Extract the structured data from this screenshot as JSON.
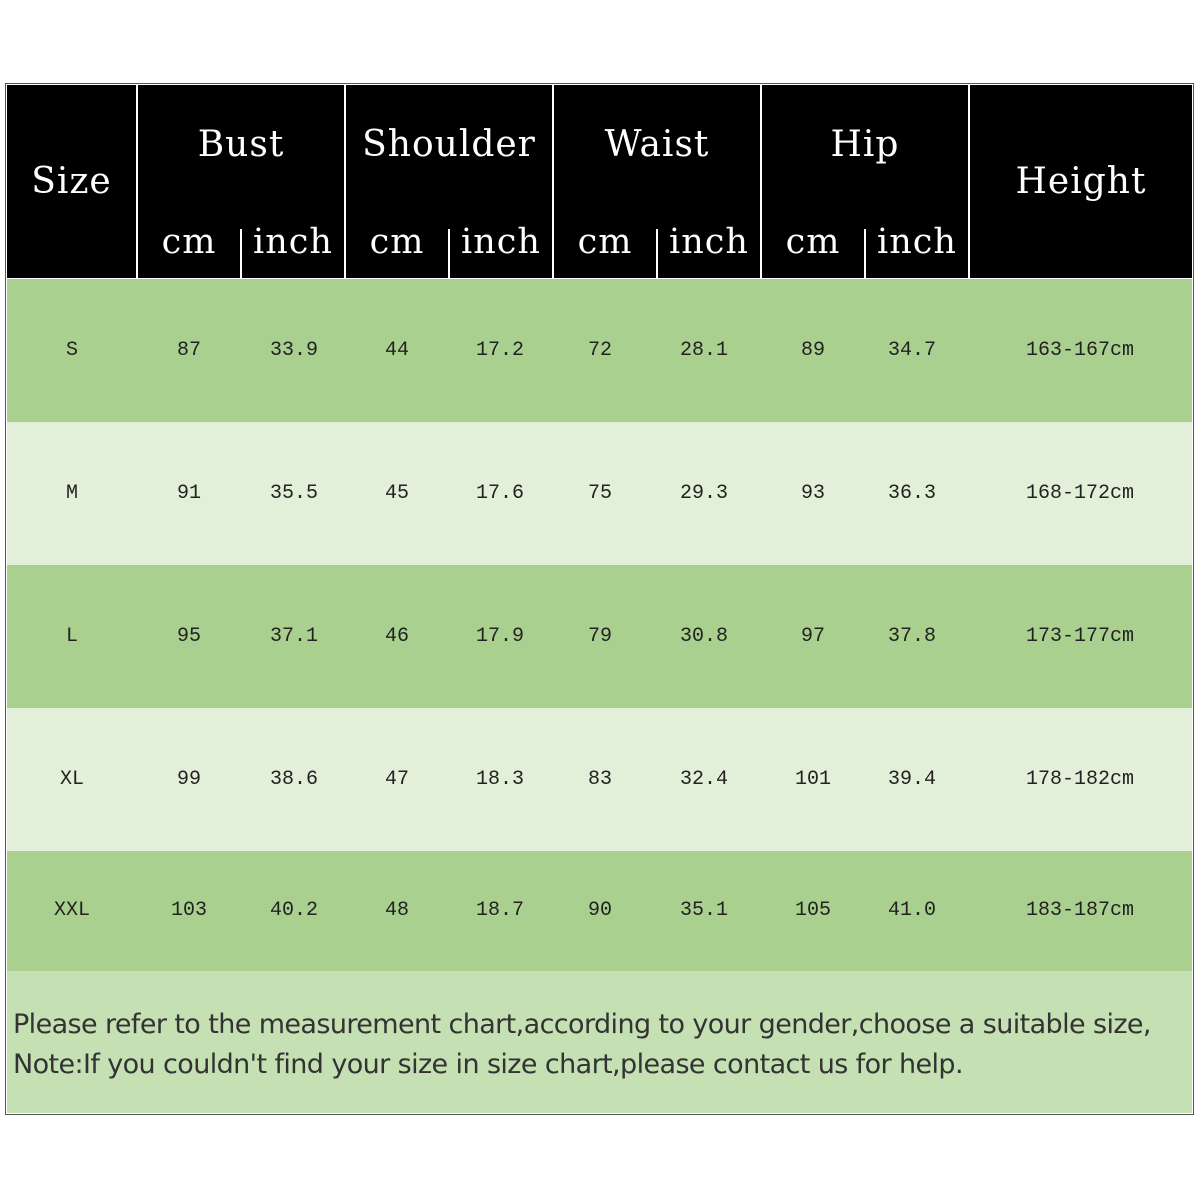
{
  "header": {
    "size": "Size",
    "groups": [
      "Bust",
      "Shoulder",
      "Waist",
      "Hip"
    ],
    "height": "Height",
    "units": [
      "cm",
      "inch",
      "cm",
      "inch",
      "cm",
      "inch",
      "cm",
      "inch"
    ]
  },
  "rows": [
    {
      "size": "S",
      "values": [
        "87",
        "33.9",
        "44",
        "17.2",
        "72",
        "28.1",
        "89",
        "34.7"
      ],
      "height": "163-167cm"
    },
    {
      "size": "M",
      "values": [
        "91",
        "35.5",
        "45",
        "17.6",
        "75",
        "29.3",
        "93",
        "36.3"
      ],
      "height": "168-172cm"
    },
    {
      "size": "L",
      "values": [
        "95",
        "37.1",
        "46",
        "17.9",
        "79",
        "30.8",
        "97",
        "37.8"
      ],
      "height": "173-177cm"
    },
    {
      "size": "XL",
      "values": [
        "99",
        "38.6",
        "47",
        "18.3",
        "83",
        "32.4",
        "101",
        "39.4"
      ],
      "height": "178-182cm"
    },
    {
      "size": "XXL",
      "values": [
        "103",
        "40.2",
        "48",
        "18.7",
        "90",
        "35.1",
        "105",
        "41.0"
      ],
      "height": "183-187cm"
    }
  ],
  "note": {
    "line1": "Please refer to the measurement chart,according to your gender,choose a suitable size,",
    "line2": "Note:If you couldn't find your size in size chart,please contact us for help."
  },
  "colors": {
    "header_bg": "#000000",
    "row_dark": "#a9d08e",
    "row_light": "#e2efd9",
    "note_bg": "#c5e0b3"
  }
}
